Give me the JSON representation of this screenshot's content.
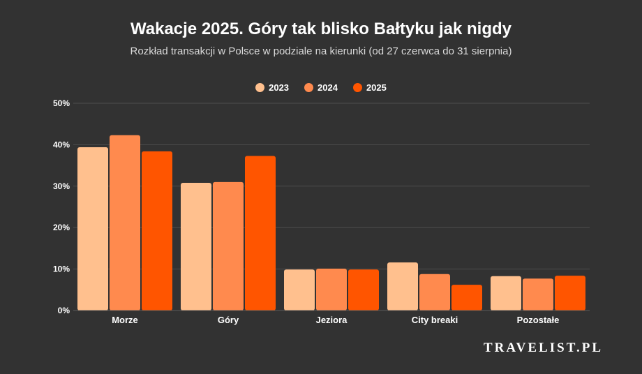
{
  "chart_data": {
    "type": "bar",
    "title": "Wakacje 2025. Góry tak blisko Bałtyku jak nigdy",
    "subtitle": "Rozkład transakcji w Polsce w podziale na kierunki (od 27 czerwca do 31 sierpnia)",
    "categories": [
      "Morze",
      "Góry",
      "Jeziora",
      "City breaki",
      "Pozostałe"
    ],
    "series": [
      {
        "name": "2023",
        "color": "#ffc08e",
        "values": [
          39.4,
          30.8,
          9.9,
          11.6,
          8.3
        ]
      },
      {
        "name": "2024",
        "color": "#ff8a4e",
        "values": [
          42.3,
          31.0,
          10.1,
          8.8,
          7.7
        ]
      },
      {
        "name": "2025",
        "color": "#ff5500",
        "values": [
          38.4,
          37.3,
          9.9,
          6.2,
          8.4
        ]
      }
    ],
    "yticks": [
      "0%",
      "10%",
      "20%",
      "30%",
      "40%",
      "50%"
    ],
    "ylim": [
      0,
      50
    ],
    "grid": true,
    "legend": "top-center"
  },
  "brand": "TRAVELIST.PL"
}
